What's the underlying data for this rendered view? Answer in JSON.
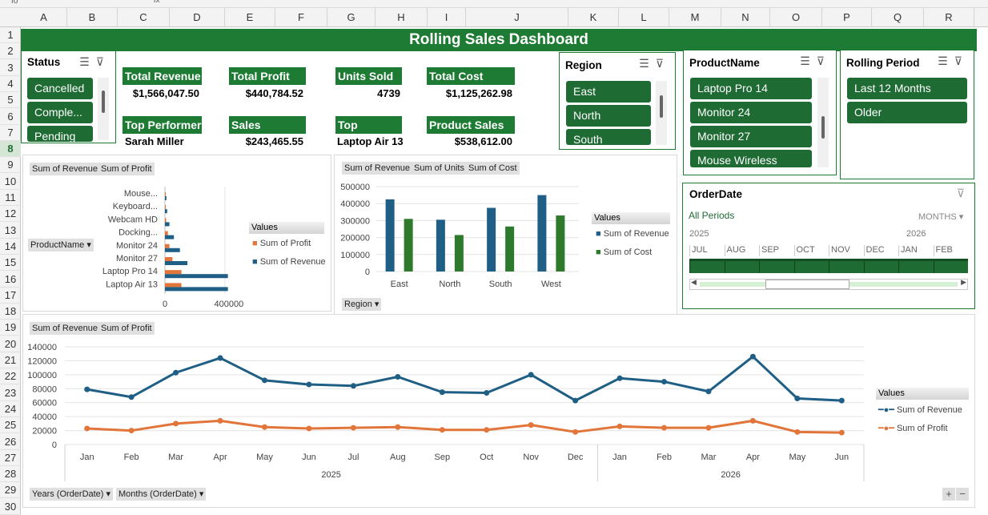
{
  "columns": [
    "A",
    "B",
    "C",
    "D",
    "E",
    "F",
    "G",
    "H",
    "I",
    "J",
    "K",
    "L",
    "M",
    "N",
    "O",
    "P",
    "Q",
    "R"
  ],
  "rows": [
    "1",
    "2",
    "3",
    "4",
    "5",
    "6",
    "7",
    "8",
    "9",
    "10",
    "11",
    "12",
    "13",
    "14",
    "15",
    "16",
    "17",
    "18",
    "19",
    "20",
    "21",
    "22",
    "23",
    "24",
    "25",
    "26",
    "27",
    "28",
    "29",
    "30"
  ],
  "formula_bar": {
    "name_box": "fo",
    "fx": "fx"
  },
  "dashboard_title": "Rolling Sales Dashboard",
  "kpis": {
    "total_revenue": {
      "label": "Total Revenue",
      "value": "$1,566,047.50"
    },
    "total_profit": {
      "label": "Total Profit",
      "value": "$440,784.52"
    },
    "units_sold": {
      "label": "Units Sold",
      "value": "4739"
    },
    "total_cost": {
      "label": "Total Cost",
      "value": "$1,125,262.98"
    },
    "top_performer": {
      "label": "Top Performer",
      "value": "Sarah Miller"
    },
    "sales": {
      "label": "Sales",
      "value": "$243,465.55"
    },
    "top_product": {
      "label": "Top Product",
      "value": "Laptop Air 13"
    },
    "product_sales": {
      "label": "Product Sales",
      "value": "$538,612.00"
    }
  },
  "slicers": {
    "status": {
      "title": "Status",
      "items": [
        "Cancelled",
        "Comple...",
        "Pending"
      ]
    },
    "region": {
      "title": "Region",
      "items": [
        "East",
        "North",
        "South"
      ]
    },
    "product": {
      "title": "ProductName",
      "items": [
        "Laptop Pro 14",
        "Monitor 24",
        "Monitor 27",
        "Mouse Wireless"
      ]
    },
    "rolling": {
      "title": "Rolling Period",
      "items": [
        "Last 12 Months",
        "Older"
      ]
    }
  },
  "timeline": {
    "title": "OrderDate",
    "all_periods": "All Periods",
    "unit": "MONTHS",
    "years": [
      "2025",
      "2026"
    ],
    "months": [
      "JUL",
      "AUG",
      "SEP",
      "OCT",
      "NOV",
      "DEC",
      "JAN",
      "FEB"
    ]
  },
  "icons": {
    "multi_select": "multi-select-icon",
    "clear_filter": "clear-filter-icon",
    "dropdown": "dropdown-arrow-icon"
  },
  "colors": {
    "accent_green": "#1e7b34",
    "revenue_blue": "#1f5f85",
    "profit_orange": "#e2753a",
    "cost_green": "#2d7a2d"
  },
  "pivot_controls": {
    "expand": "+",
    "collapse": "−"
  },
  "chart_data": [
    {
      "type": "bar",
      "orientation": "horizontal",
      "field_buttons": [
        "Sum of Revenue",
        "Sum of Profit"
      ],
      "axis_field": "ProductName",
      "legend_title": "Values",
      "categories": [
        "Mouse...",
        "Keyboard...",
        "Webcam HD",
        "Docking...",
        "Monitor 24",
        "Monitor 27",
        "Laptop Pro 14",
        "Laptop Air 13"
      ],
      "series": [
        {
          "name": "Sum of Profit",
          "values": [
            3000,
            5000,
            8000,
            20000,
            30000,
            50000,
            110000,
            110000
          ]
        },
        {
          "name": "Sum of Revenue",
          "values": [
            10000,
            15000,
            30000,
            60000,
            100000,
            150000,
            420000,
            420000
          ]
        }
      ],
      "xticks": [
        "0",
        "400000"
      ],
      "xlim": [
        0,
        550000
      ]
    },
    {
      "type": "bar",
      "field_buttons": [
        "Sum of Revenue",
        "Sum of Units",
        "Sum of Cost"
      ],
      "axis_field": "Region",
      "legend_title": "Values",
      "categories": [
        "East",
        "North",
        "South",
        "West"
      ],
      "series": [
        {
          "name": "Sum of Revenue",
          "values": [
            425000,
            305000,
            375000,
            450000
          ]
        },
        {
          "name": "Sum of Cost",
          "values": [
            310000,
            215000,
            265000,
            330000
          ]
        }
      ],
      "yticks": [
        "0",
        "100000",
        "200000",
        "300000",
        "400000",
        "500000"
      ],
      "ylim": [
        0,
        500000
      ]
    },
    {
      "type": "line",
      "field_buttons": [
        "Sum of Revenue",
        "Sum of Profit"
      ],
      "axis_fields": [
        "Years (OrderDate)",
        "Months (OrderDate)"
      ],
      "legend_title": "Values",
      "categories": [
        "Jan",
        "Feb",
        "Mar",
        "Apr",
        "May",
        "Jun",
        "Jul",
        "Aug",
        "Sep",
        "Oct",
        "Nov",
        "Dec",
        "Jan",
        "Feb",
        "Mar",
        "Apr",
        "May",
        "Jun"
      ],
      "years": [
        {
          "label": "2025",
          "span": 12
        },
        {
          "label": "2026",
          "span": 6
        }
      ],
      "series": [
        {
          "name": "Sum of Revenue",
          "values": [
            79000,
            68000,
            103000,
            124000,
            92000,
            86000,
            84000,
            97000,
            75000,
            74000,
            100000,
            63000,
            95000,
            90000,
            76000,
            126000,
            66000,
            63000
          ]
        },
        {
          "name": "Sum of Profit",
          "values": [
            23000,
            20000,
            30000,
            34000,
            25000,
            23000,
            24000,
            25000,
            21000,
            21000,
            28000,
            18000,
            26000,
            24000,
            24000,
            34000,
            18000,
            17000
          ]
        }
      ],
      "yticks": [
        "0",
        "20000",
        "40000",
        "60000",
        "80000",
        "100000",
        "120000",
        "140000"
      ],
      "ylim": [
        0,
        140000
      ]
    }
  ]
}
